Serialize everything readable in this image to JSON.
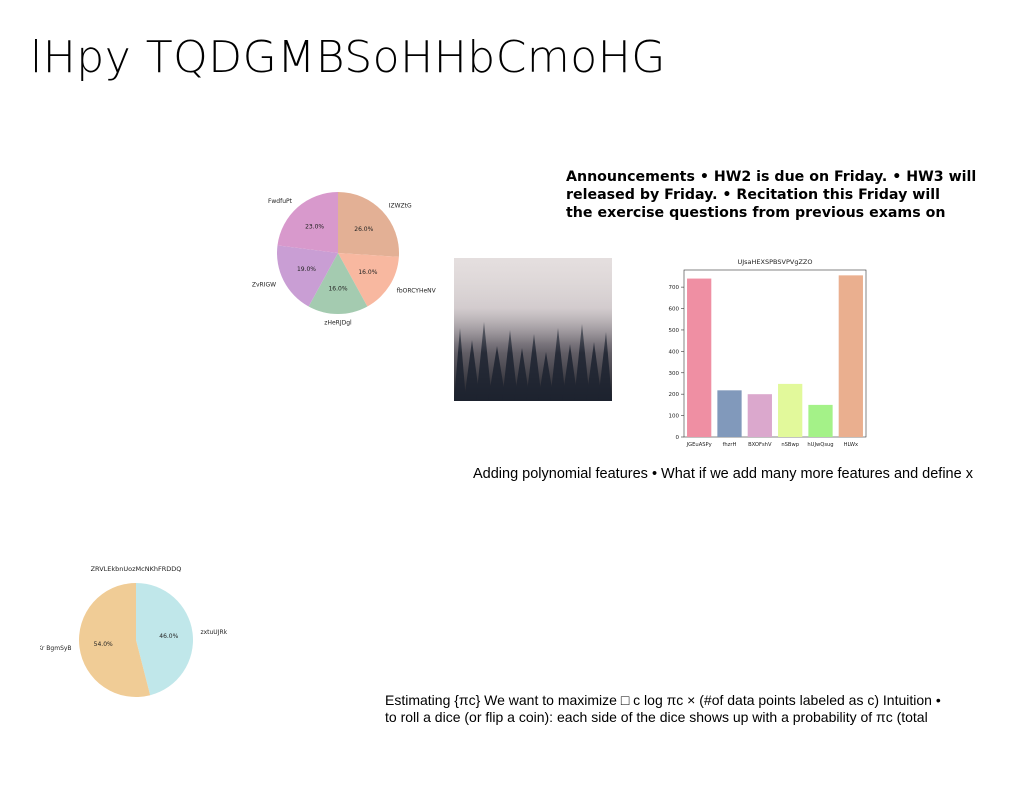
{
  "slide": {
    "title": "lHpy TQDGMBSoHHbCmoHG",
    "announcements": [
      "Announcements • HW2 is due on Friday. • HW3 will",
      "released by Friday. • Recitation this Friday will",
      "the exercise questions from previous exams on"
    ],
    "polynomial_text": "Adding polynomial features • What if we add many more features and define x",
    "estimating_lines": [
      "Estimating {πc} We want to maximize □ c log πc × (#of data points labeled as c) Intuition •",
      "to roll a dice (or flip a coin): each side of the dice shows up with a probability of πc (total"
    ]
  },
  "colors": {
    "pie1": [
      "#e3b095",
      "#f8b8a0",
      "#a4cbb0",
      "#c99ed4",
      "#d899cc"
    ],
    "bar": [
      "#ef8fa3",
      "#8199bb",
      "#dba8cd",
      "#e2f99b",
      "#a4f288",
      "#eaaf8f"
    ],
    "pie2": [
      "#c0e7ea",
      "#f0cc96"
    ]
  },
  "chart_data": [
    {
      "type": "pie",
      "title": "",
      "labels": [
        "IZWZtG",
        "fbORCYHeNV",
        "zHeRJDgl",
        "ZvRIGW",
        "FwdfuPt"
      ],
      "values": [
        26.0,
        16.0,
        16.0,
        19.0,
        23.0
      ],
      "value_labels": [
        "26.0%",
        "16.0%",
        "16.0%",
        "19.0%",
        "23.0%"
      ]
    },
    {
      "type": "bar",
      "title": "UJsaHEXSPBSVPVgZZO",
      "categories": [
        "JGEuASPy",
        "fhzrH",
        "BXOFshV",
        "nSBwp",
        "hUJwQsug",
        "HLWx"
      ],
      "values": [
        740,
        218,
        200,
        248,
        150,
        755
      ],
      "ylim": [
        0,
        780
      ],
      "yticks": [
        0,
        100,
        200,
        300,
        400,
        500,
        600,
        700
      ]
    },
    {
      "type": "pie",
      "title": "ZRVLEkbnUozMcNKhFRDDQ",
      "labels": [
        "zxtuUJRk",
        "Kr BgmSyB"
      ],
      "values": [
        46.0,
        54.0
      ],
      "value_labels": [
        "46.0%",
        "54.0%"
      ]
    }
  ]
}
